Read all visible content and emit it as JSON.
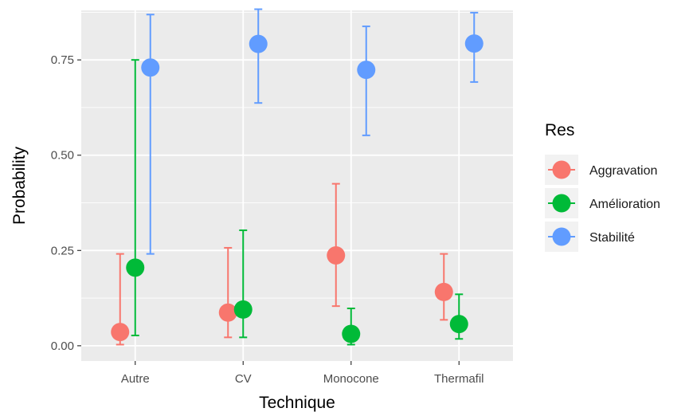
{
  "chart_data": {
    "type": "scatter",
    "subtype": "point-with-errorbars (dodged)",
    "title": "",
    "xlabel": "Technique",
    "ylabel": "Probability",
    "categories": [
      "Autre",
      "CV",
      "Monocone",
      "Thermafil"
    ],
    "ylim": [
      -0.04,
      0.88
    ],
    "yticks": [
      0,
      0.25,
      0.5,
      0.75
    ],
    "ytick_labels": [
      "0.00",
      "0.25",
      "0.50",
      "0.75"
    ],
    "grid": true,
    "background": "#EBEBEB",
    "legend": {
      "title": "Res",
      "position": "right"
    },
    "series": [
      {
        "name": "Aggravation",
        "color": "#F8766D",
        "values": [
          0.036,
          0.087,
          0.237,
          0.141
        ],
        "lower": [
          0.003,
          0.022,
          0.104,
          0.068
        ],
        "upper": [
          0.241,
          0.257,
          0.425,
          0.241
        ]
      },
      {
        "name": "Amélioration",
        "color": "#00BA38",
        "values": [
          0.205,
          0.095,
          0.031,
          0.057
        ],
        "lower": [
          0.027,
          0.022,
          0.003,
          0.018
        ],
        "upper": [
          0.75,
          0.303,
          0.098,
          0.135
        ]
      },
      {
        "name": "Stabilité",
        "color": "#619CFF",
        "values": [
          0.73,
          0.792,
          0.724,
          0.793
        ],
        "lower": [
          0.241,
          0.637,
          0.552,
          0.692
        ],
        "upper": [
          0.869,
          0.883,
          0.838,
          0.874
        ]
      }
    ]
  }
}
